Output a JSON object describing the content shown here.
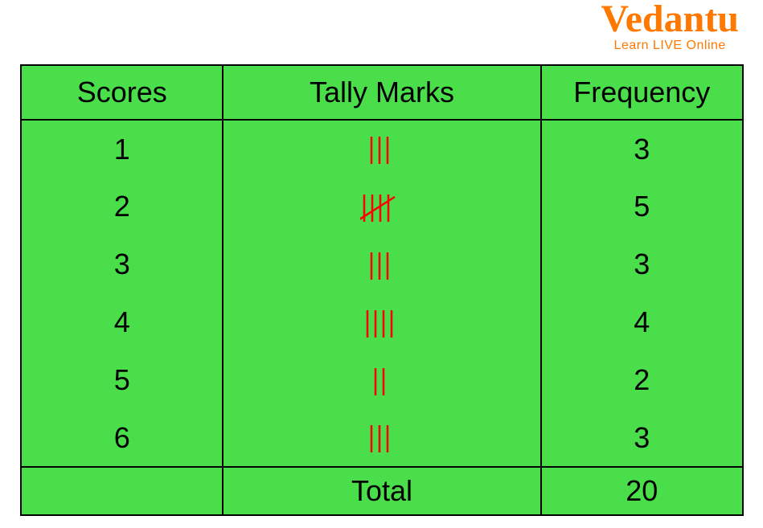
{
  "logo": {
    "name": "Vedantu",
    "tagline": "Learn LIVE Online",
    "color": "#ff7800"
  },
  "table": {
    "background_color": "#4ade4a",
    "border_color": "#000000",
    "tally_color": "#ff0000",
    "text_color": "#000000",
    "header_fontsize": 36,
    "cell_fontsize": 36,
    "columns": [
      "Scores",
      "Tally Marks",
      "Frequency"
    ],
    "rows": [
      {
        "score": "1",
        "tally": 3,
        "frequency": "3"
      },
      {
        "score": "2",
        "tally": 5,
        "frequency": "5"
      },
      {
        "score": "3",
        "tally": 3,
        "frequency": "3"
      },
      {
        "score": "4",
        "tally": 4,
        "frequency": "4"
      },
      {
        "score": "5",
        "tally": 2,
        "frequency": "2"
      },
      {
        "score": "6",
        "tally": 3,
        "frequency": "3"
      }
    ],
    "total_label": "Total",
    "total_value": "20",
    "tally_stroke_width": 2.5,
    "tally_spacing": 10,
    "tally_height": 40
  }
}
